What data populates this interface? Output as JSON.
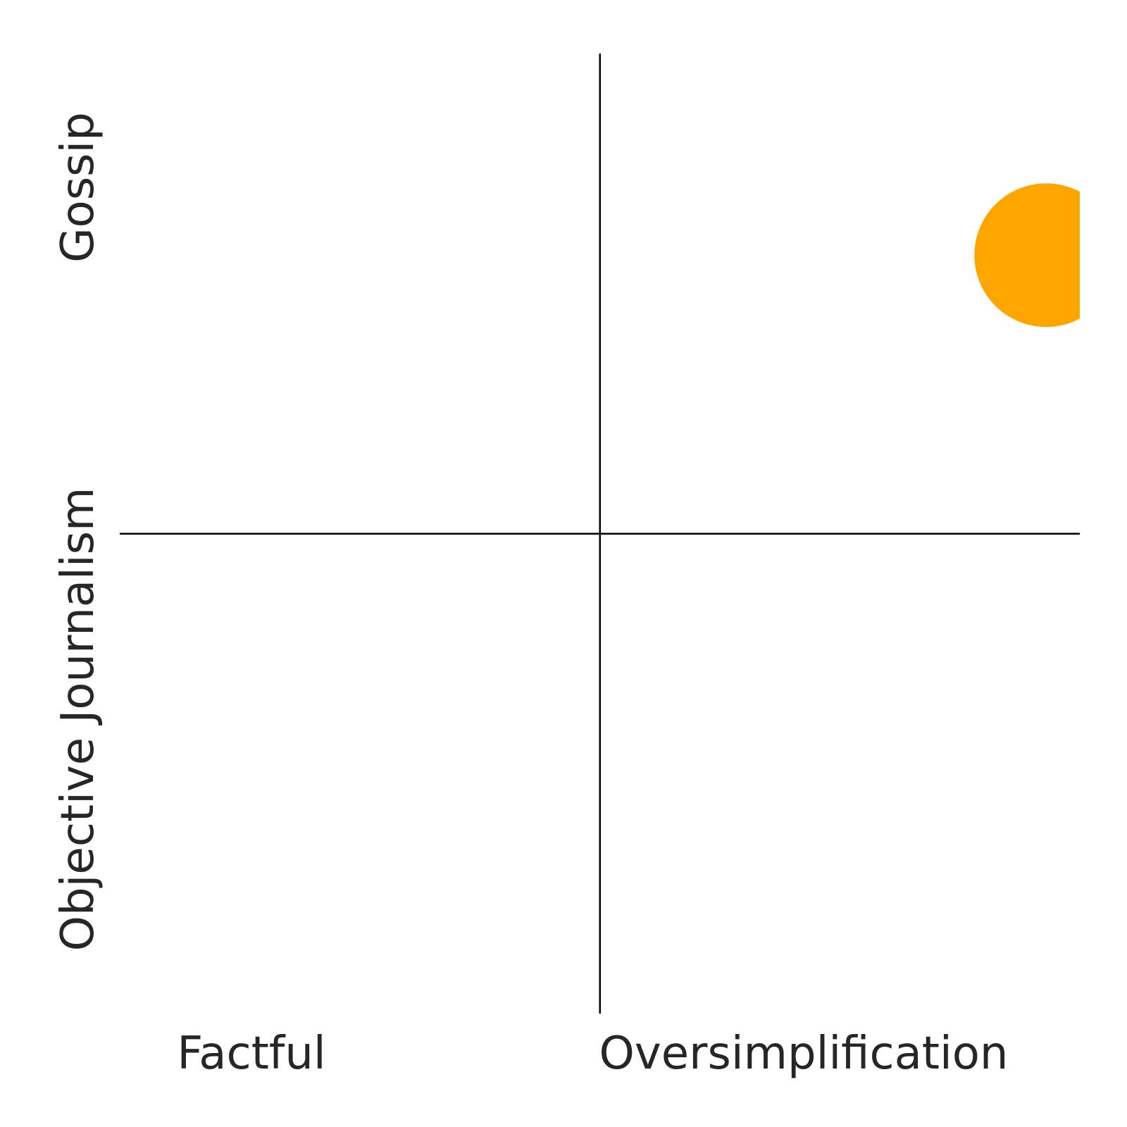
{
  "chart_data": {
    "type": "scatter",
    "title": "",
    "xlabel": "",
    "ylabel": "",
    "xlim": [
      -1,
      1
    ],
    "ylim": [
      -1,
      1
    ],
    "grid": false,
    "x_labels": {
      "negative": "Factful",
      "positive": "Oversimplification"
    },
    "y_labels": {
      "negative": "Objective Journalism",
      "positive": "Gossip"
    },
    "points": [
      {
        "x": 0.93,
        "y": 0.58,
        "color": "#FFA500"
      }
    ]
  }
}
